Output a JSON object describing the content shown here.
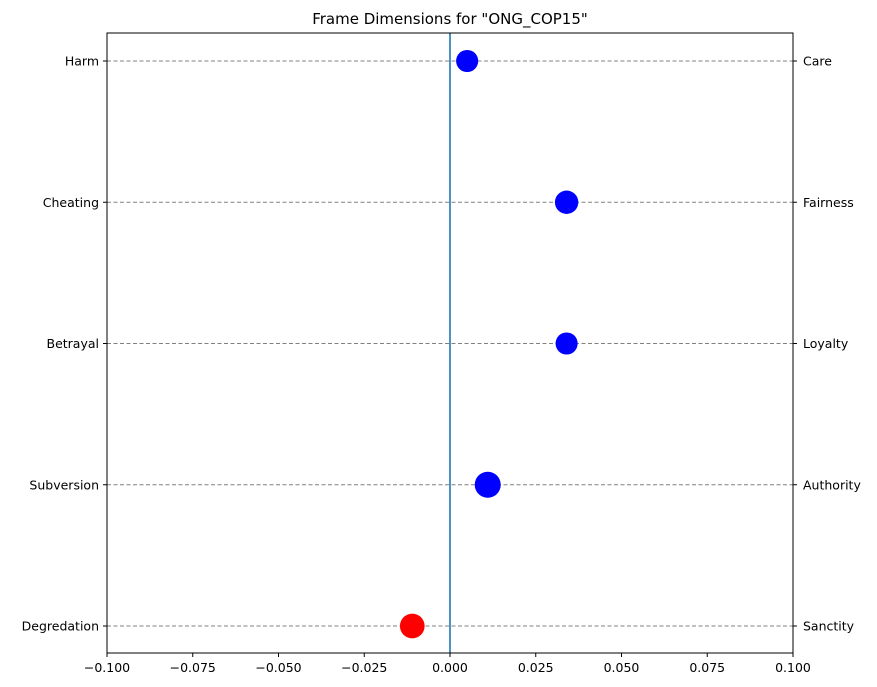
{
  "chart_data": {
    "type": "scatter",
    "title": "Frame Dimensions for \"ONG_COP15\"",
    "xlim": [
      -0.1,
      0.1
    ],
    "xticks": [
      -0.1,
      -0.075,
      -0.05,
      -0.025,
      0.0,
      0.025,
      0.05,
      0.075,
      0.1
    ],
    "xtick_labels": [
      "−0.100",
      "−0.075",
      "−0.050",
      "−0.025",
      "0.000",
      "0.025",
      "0.050",
      "0.075",
      "0.100"
    ],
    "reference_line_x": 0.0,
    "grid": "horizontal dashed",
    "colors": {
      "positive": "#0000ff",
      "negative": "#ff0000",
      "reference_line": "#1f77b4",
      "grid": "#808080"
    },
    "dimensions": [
      {
        "vice": "Harm",
        "virtue": "Care",
        "value": 0.005,
        "relative_size": 0.85
      },
      {
        "vice": "Cheating",
        "virtue": "Fairness",
        "value": 0.034,
        "relative_size": 0.9
      },
      {
        "vice": "Betrayal",
        "virtue": "Loyalty",
        "value": 0.034,
        "relative_size": 0.85
      },
      {
        "vice": "Subversion",
        "virtue": "Authority",
        "value": 0.011,
        "relative_size": 1.0
      },
      {
        "vice": "Degredation",
        "virtue": "Sanctity",
        "value": -0.011,
        "relative_size": 0.95
      }
    ]
  }
}
